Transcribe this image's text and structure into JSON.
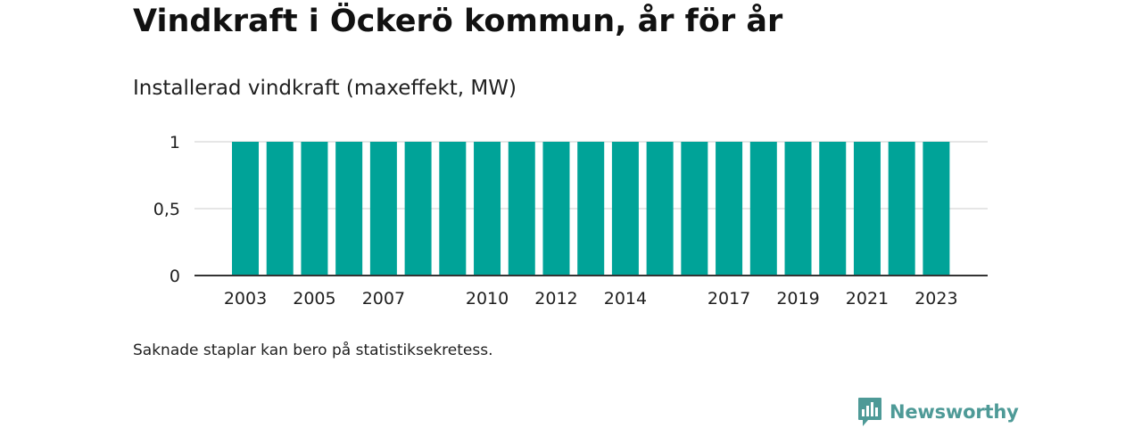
{
  "header": {
    "title": "Vindkraft i Öckerö kommun, år för år",
    "subtitle": "Installerad vindkraft (maxeffekt, MW)"
  },
  "footer": {
    "note": "Saknade staplar kan bero på statistiksekretess.",
    "brand": "Newsworthy"
  },
  "colors": {
    "bar": "#00a398",
    "grid": "#dddddd",
    "axis": "#333333",
    "brand": "#4e9a97"
  },
  "icons": {
    "brand": "newsworthy-logo-icon"
  },
  "chart_data": {
    "type": "bar",
    "categories": [
      "2003",
      "2004",
      "2005",
      "2006",
      "2007",
      "2008",
      "2009",
      "2010",
      "2011",
      "2012",
      "2013",
      "2014",
      "2015",
      "2016",
      "2017",
      "2018",
      "2019",
      "2020",
      "2021",
      "2022",
      "2023"
    ],
    "values": [
      1,
      1,
      1,
      1,
      1,
      1,
      1,
      1,
      1,
      1,
      1,
      1,
      1,
      1,
      1,
      1,
      1,
      1,
      1,
      1,
      1
    ],
    "x_tick_labels": [
      "2003",
      "2005",
      "2007",
      "2010",
      "2012",
      "2014",
      "2017",
      "2019",
      "2021",
      "2023"
    ],
    "y_ticks": [
      0,
      0.5,
      1
    ],
    "y_tick_labels": [
      "0",
      "0,5",
      "1"
    ],
    "ylim": [
      0,
      1
    ],
    "title": "Vindkraft i Öckerö kommun, år för år",
    "subtitle": "Installerad vindkraft (maxeffekt, MW)",
    "xlabel": "",
    "ylabel": "",
    "grid": true,
    "legend": false
  }
}
